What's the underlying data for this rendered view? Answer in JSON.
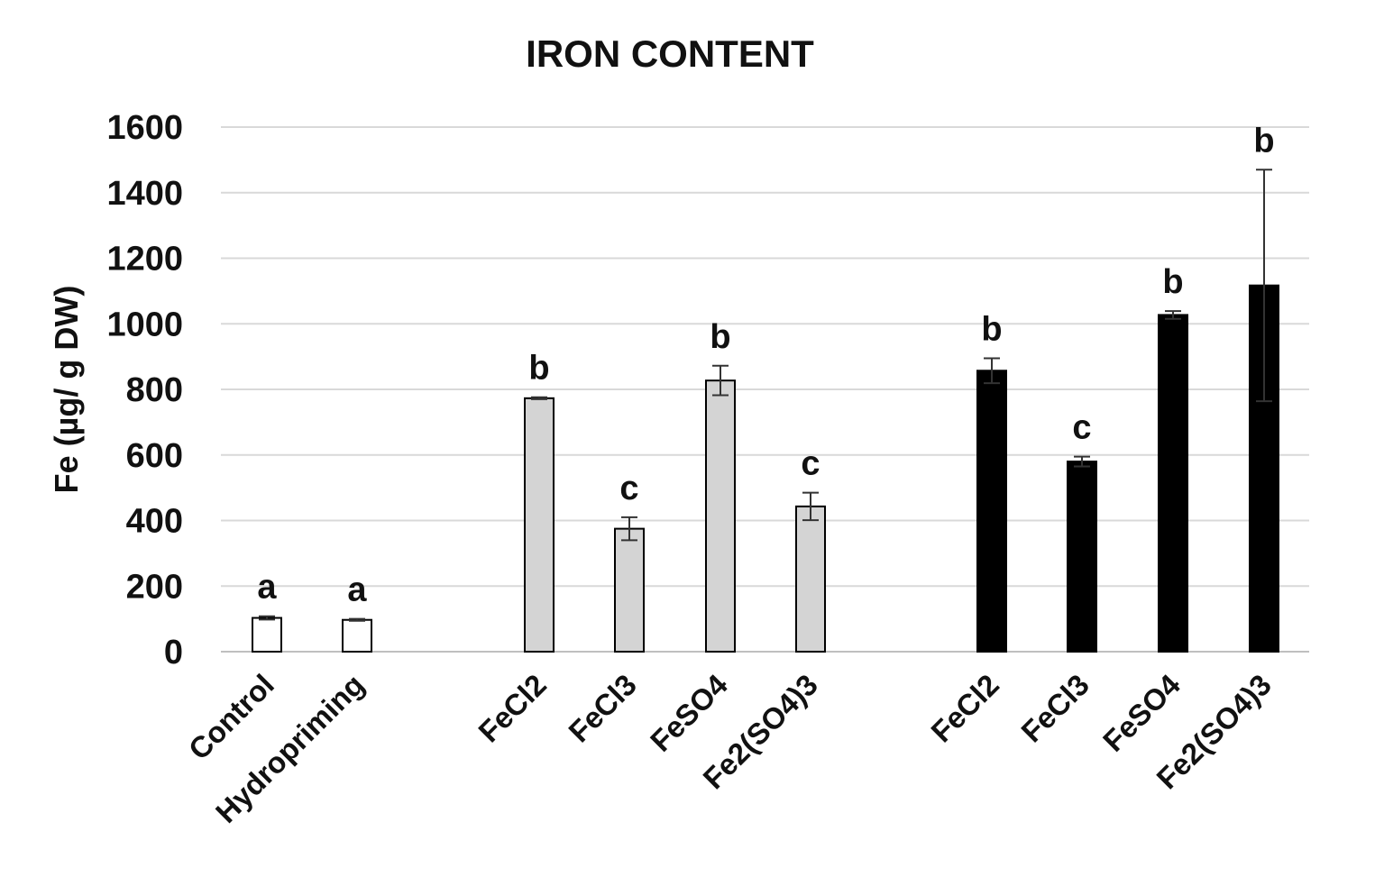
{
  "chart_data": {
    "type": "bar",
    "title": "IRON CONTENT",
    "ylabel": "Fe  (µg/ g DW)",
    "xlabel": "",
    "ylim": [
      0,
      1600
    ],
    "yticks": [
      0,
      200,
      400,
      600,
      800,
      1000,
      1200,
      1400,
      1600
    ],
    "grid": true,
    "bar_colors": {
      "white": "#ffffff",
      "gray": "#d4d4d4",
      "black": "#000000"
    },
    "bars": [
      {
        "category": "Control",
        "value": 103,
        "error": 5,
        "sig": "a",
        "color": "white"
      },
      {
        "category": "Hydropriming",
        "value": 97,
        "error": 3,
        "sig": "a",
        "color": "white"
      },
      {
        "category": "FeCl2",
        "value": 773,
        "error": 3,
        "sig": "b",
        "color": "gray"
      },
      {
        "category": "FeCl3",
        "value": 375,
        "error": 35,
        "sig": "c",
        "color": "gray"
      },
      {
        "category": "FeSO4",
        "value": 827,
        "error": 45,
        "sig": "b",
        "color": "gray"
      },
      {
        "category": "Fe2(SO4)3",
        "value": 443,
        "error": 42,
        "sig": "c",
        "color": "gray"
      },
      {
        "category": "FeCl2",
        "value": 857,
        "error": 38,
        "sig": "b",
        "color": "black"
      },
      {
        "category": "FeCl3",
        "value": 580,
        "error": 15,
        "sig": "c",
        "color": "black"
      },
      {
        "category": "FeSO4",
        "value": 1027,
        "error": 12,
        "sig": "b",
        "color": "black"
      },
      {
        "category": "Fe2(SO4)3",
        "value": 1117,
        "error": 353,
        "sig": "b",
        "color": "black"
      }
    ]
  }
}
